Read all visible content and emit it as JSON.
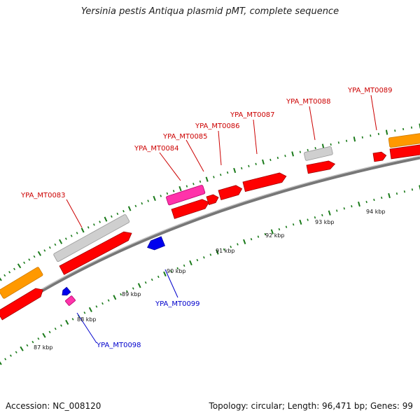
{
  "title": "Yersinia pestis Antiqua plasmid pMT, complete sequence",
  "footer": {
    "accession": "Accession: NC_008120",
    "summary": "Topology: circular; Length: 96,471 bp; Genes: 99"
  },
  "colors": {
    "cds_forward": "#ff0000",
    "cds_reverse": "#0000ee",
    "pseudo": "#c8c8c8",
    "other_feature": "#ff9900",
    "hypothetical": "#ff33aa",
    "backbone": "#808080",
    "tick": "#1a7a1a",
    "label_forward": "#cc0000",
    "label_reverse": "#0000cc"
  },
  "tick_labels": [
    "87 kbp",
    "88 kbp",
    "89 kbp",
    "90 kbp",
    "91 kbp",
    "92 kbp",
    "93 kbp",
    "94 kbp"
  ],
  "gene_labels": [
    {
      "text": "YPA_MT0083",
      "strand": "forward"
    },
    {
      "text": "YPA_MT0084",
      "strand": "forward"
    },
    {
      "text": "YPA_MT0085",
      "strand": "forward"
    },
    {
      "text": "YPA_MT0086",
      "strand": "forward"
    },
    {
      "text": "YPA_MT0087",
      "strand": "forward"
    },
    {
      "text": "YPA_MT0088",
      "strand": "forward"
    },
    {
      "text": "YPA_MT0089",
      "strand": "forward"
    },
    {
      "text": "YPA_MT0099",
      "strand": "reverse"
    },
    {
      "text": "YPA_MT0098",
      "strand": "reverse"
    }
  ]
}
